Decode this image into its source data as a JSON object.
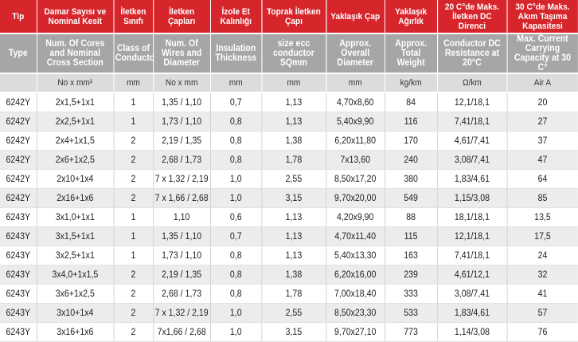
{
  "headers_tr": [
    "Tip",
    "Damar Sayısı ve Nominal Kesit",
    "İletken Sınıfı",
    "İletken Çapları",
    "İzole Et Kalınlığı",
    "Toprak İletken Çapı",
    "Yaklaşık Çap",
    "Yaklaşık Ağırlık",
    "20 C°de Maks. İletken DC Direnci",
    "30 C°de Maks. Akım Taşıma Kapasitesi"
  ],
  "headers_en": [
    "Type",
    "Num. Of Cores and Nominal Cross Section",
    "Class of Conductor",
    "Num. Of Wires and Diameter",
    "Insulation Thickness",
    "size ecc conductor SQmm",
    "Approx. Overall Diameter",
    "Approx. Total Weight",
    "Conductor DC Resistance at 20°C",
    "Max. Current Carrying Capacity at 30 C°"
  ],
  "units": [
    "",
    "No x mm²",
    "mm",
    "No x mm",
    "mm",
    "mm",
    "mm",
    "kg/km",
    "Ω/km",
    "Air A"
  ],
  "rows": [
    [
      "6242Y",
      "2x1,5+1x1",
      "1",
      "1,35 / 1,10",
      "0,7",
      "1,13",
      "4,70x8,60",
      "84",
      "12,1/18,1",
      "20"
    ],
    [
      "6242Y",
      "2x2,5+1x1",
      "1",
      "1,73 / 1,10",
      "0,8",
      "1,13",
      "5,40x9,90",
      "116",
      "7,41/18,1",
      "27"
    ],
    [
      "6242Y",
      "2x4+1x1,5",
      "2",
      "2,19 / 1,35",
      "0,8",
      "1,38",
      "6,20x11,80",
      "170",
      "4,61/7,41",
      "37"
    ],
    [
      "6242Y",
      "2x6+1x2,5",
      "2",
      "2,68 / 1,73",
      "0,8",
      "1,78",
      "7x13,60",
      "240",
      "3,08/7,41",
      "47"
    ],
    [
      "6242Y",
      "2x10+1x4",
      "2",
      "7 x 1,32 / 2,19",
      "1,0",
      "2,55",
      "8,50x17,20",
      "380",
      "1,83/4,61",
      "64"
    ],
    [
      "6242Y",
      "2x16+1x6",
      "2",
      "7 x 1,66 / 2,68",
      "1,0",
      "3,15",
      "9,70x20,00",
      "549",
      "1,15/3,08",
      "85"
    ],
    [
      "6243Y",
      "3x1,0+1x1",
      "1",
      "1,10",
      "0,6",
      "1,13",
      "4,20x9,90",
      "88",
      "18,1/18,1",
      "13,5"
    ],
    [
      "6243Y",
      "3x1,5+1x1",
      "1",
      "1,35 / 1,10",
      "0,7",
      "1,13",
      "4,70x11,40",
      "115",
      "12,1/18,1",
      "17,5"
    ],
    [
      "6243Y",
      "3x2,5+1x1",
      "1",
      "1,73 / 1,10",
      "0,8",
      "1,13",
      "5,40x13,30",
      "163",
      "7,41/18,1",
      "24"
    ],
    [
      "6243Y",
      "3x4,0+1x1,5",
      "2",
      "2,19 / 1,35",
      "0,8",
      "1,38",
      "6,20x16,00",
      "239",
      "4,61/12,1",
      "32"
    ],
    [
      "6243Y",
      "3x6+1x2,5",
      "2",
      "2,68 / 1,73",
      "0,8",
      "1,78",
      "7,00x18,40",
      "333",
      "3,08/7,41",
      "41"
    ],
    [
      "6243Y",
      "3x10+1x4",
      "2",
      "7 x 1,32 / 2,19",
      "1,0",
      "2,55",
      "8,50x23,30",
      "533",
      "1,83/4,61",
      "57"
    ],
    [
      "6243Y",
      "3x16+1x6",
      "2",
      "7x1,66 / 2,68",
      "1,0",
      "3,15",
      "9,70x27,10",
      "773",
      "1,14/3,08",
      "76"
    ]
  ]
}
